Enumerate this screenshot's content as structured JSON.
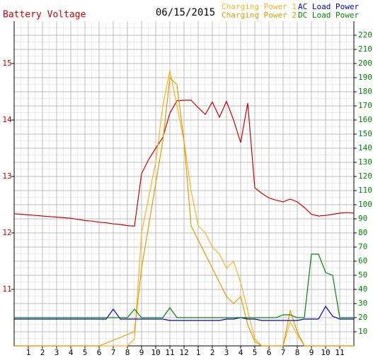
{
  "chart_data": {
    "type": "line",
    "title": "Battery Voltage",
    "subtitle": "06/15/2015",
    "x": [
      0,
      0.5,
      1,
      1.5,
      2,
      2.5,
      3,
      3.5,
      4,
      4.5,
      5,
      5.5,
      6,
      6.5,
      7,
      7.5,
      8,
      8.5,
      9,
      9.5,
      10,
      10.5,
      11,
      11.5,
      12,
      12.5,
      13,
      13.5,
      14,
      14.5,
      15,
      15.5,
      16,
      16.5,
      17,
      17.5,
      18,
      18.5,
      19,
      19.5,
      20,
      20.5,
      21,
      21.5,
      22,
      22.5,
      23,
      23.5,
      24
    ],
    "xlim": [
      0,
      24
    ],
    "xticks": [
      1,
      2,
      3,
      4,
      5,
      6,
      7,
      8,
      9,
      10,
      11,
      12,
      {
        "value": 13,
        "label": "1"
      },
      {
        "value": 14,
        "label": "2"
      },
      {
        "value": 15,
        "label": "3"
      },
      {
        "value": 16,
        "label": "4"
      },
      {
        "value": 17,
        "label": "5"
      },
      {
        "value": 18,
        "label": "6"
      },
      {
        "value": 19,
        "label": "7"
      },
      {
        "value": 20,
        "label": "8"
      },
      {
        "value": 21,
        "label": "9"
      },
      {
        "value": 22,
        "label": "10"
      },
      {
        "value": 23,
        "label": "11"
      }
    ],
    "ylim": [
      10,
      15.75
    ],
    "yticks": [
      11,
      12,
      13,
      14,
      15
    ],
    "y2lim": [
      0,
      230
    ],
    "y2ticks": [
      10,
      20,
      30,
      40,
      50,
      60,
      70,
      80,
      90,
      100,
      110,
      120,
      130,
      140,
      150,
      160,
      170,
      180,
      190,
      200,
      210,
      220
    ],
    "grid": true,
    "series": [
      {
        "name": "Battery Voltage",
        "color": "#cc0000",
        "axis": "y",
        "values": [
          12.34,
          12.33,
          12.32,
          12.31,
          12.3,
          12.29,
          12.28,
          12.27,
          12.26,
          12.24,
          12.22,
          12.21,
          12.19,
          12.18,
          12.16,
          12.15,
          12.13,
          12.12,
          13.05,
          13.3,
          13.5,
          13.69,
          14.12,
          14.34,
          14.35,
          14.35,
          14.22,
          14.1,
          14.32,
          14.05,
          14.33,
          14.0,
          13.6,
          14.3,
          12.8,
          12.7,
          12.62,
          12.58,
          12.55,
          12.6,
          12.55,
          12.45,
          12.33,
          12.3,
          12.31,
          12.33,
          12.35,
          12.36,
          12.35
        ]
      },
      {
        "name": "Charging Power 1",
        "color": "#ffb020",
        "axis": "y2",
        "values": [
          0,
          0,
          0,
          0,
          0,
          0,
          0,
          0,
          0,
          0,
          0,
          0,
          0,
          0,
          0,
          0,
          0,
          5,
          80,
          105,
          130,
          170,
          195,
          170,
          145,
          110,
          85,
          80,
          70,
          65,
          55,
          60,
          45,
          25,
          5,
          0,
          0,
          0,
          0,
          17,
          8,
          0,
          0,
          0,
          0,
          0,
          0,
          0,
          0
        ]
      },
      {
        "name": "Charging Power 2",
        "color": "#e89a00",
        "axis": "y2",
        "values": [
          0,
          0,
          0,
          0,
          0,
          0,
          0,
          0,
          0,
          0,
          0,
          0,
          0,
          2,
          4,
          6,
          8,
          10,
          55,
          85,
          115,
          145,
          190,
          185,
          145,
          85,
          75,
          65,
          55,
          45,
          35,
          30,
          35,
          15,
          3,
          0,
          0,
          0,
          0,
          25,
          10,
          0,
          0,
          0,
          0,
          0,
          0,
          0,
          0
        ]
      },
      {
        "name": "AC Load Power",
        "color": "#0000cc",
        "axis": "y2",
        "values": [
          19,
          19,
          19,
          19,
          19,
          19,
          19,
          19,
          19,
          19,
          19,
          19,
          19,
          19,
          26,
          19,
          19,
          19,
          19,
          19,
          19,
          19,
          18,
          18,
          18,
          18,
          18,
          18,
          18,
          18,
          19,
          19,
          20,
          19,
          19,
          18,
          18,
          18,
          18,
          18,
          18,
          19,
          19,
          19,
          28,
          21,
          19,
          19,
          19
        ]
      },
      {
        "name": "DC Load Power",
        "color": "#008800",
        "axis": "y2",
        "values": [
          20,
          20,
          20,
          20,
          20,
          20,
          20,
          20,
          20,
          20,
          20,
          20,
          20,
          20,
          20,
          20,
          20,
          26,
          20,
          20,
          20,
          20,
          27,
          20,
          20,
          20,
          20,
          20,
          20,
          20,
          20,
          20,
          20,
          20,
          20,
          20,
          20,
          20,
          22,
          22,
          20,
          20,
          65,
          65,
          52,
          50,
          20,
          20,
          20
        ]
      }
    ]
  }
}
